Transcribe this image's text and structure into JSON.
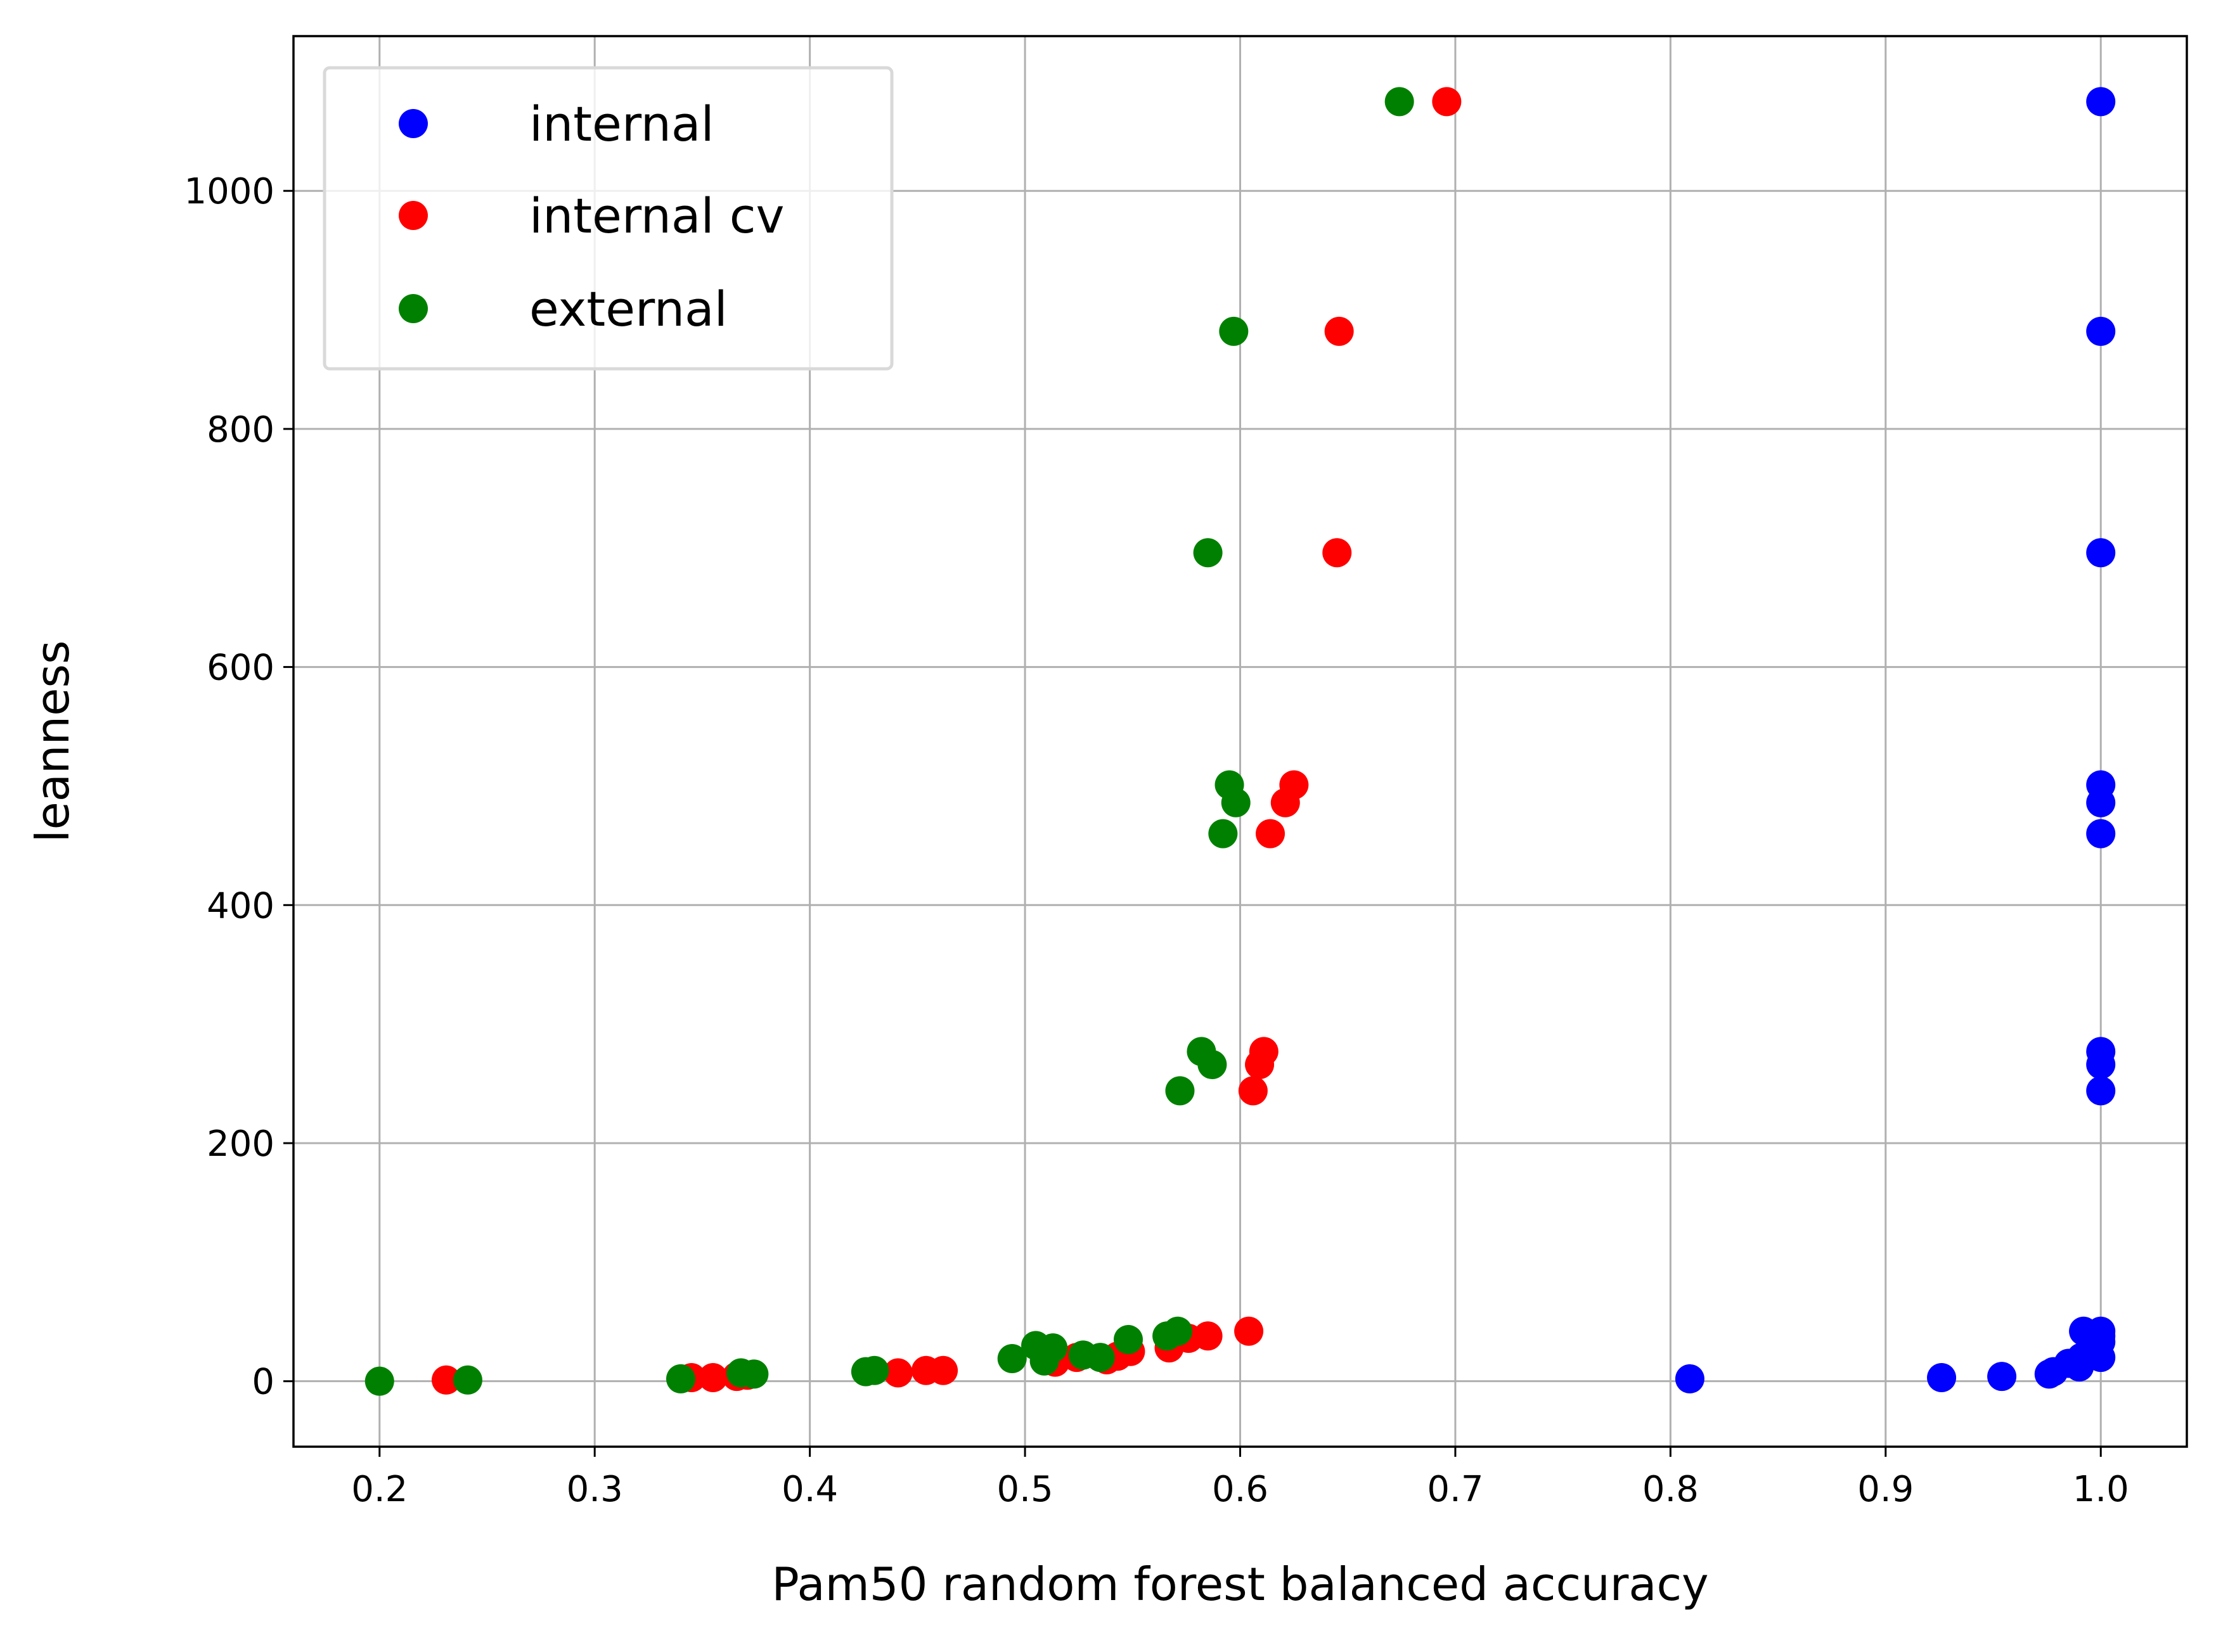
{
  "chart_data": {
    "type": "scatter",
    "xlabel": "Pam50 random forest balanced accuracy",
    "ylabel": "leanness",
    "xlim": [
      0.16,
      1.04
    ],
    "ylim": [
      -55,
      1130
    ],
    "x_ticks": [
      0.2,
      0.3,
      0.4,
      0.5,
      0.6,
      0.7,
      0.8,
      0.9,
      1.0
    ],
    "x_tick_labels": [
      "0.2",
      "0.3",
      "0.4",
      "0.5",
      "0.6",
      "0.7",
      "0.8",
      "0.9",
      "1.0"
    ],
    "y_ticks": [
      0,
      200,
      400,
      600,
      800,
      1000
    ],
    "y_tick_labels": [
      "0",
      "200",
      "400",
      "600",
      "800",
      "1000"
    ],
    "grid": true,
    "legend_position": "top-left",
    "series": [
      {
        "name": "internal",
        "color": "#0000ff",
        "points": [
          [
            1.0,
            1075
          ],
          [
            1.0,
            882
          ],
          [
            1.0,
            696
          ],
          [
            1.0,
            501
          ],
          [
            1.0,
            486
          ],
          [
            1.0,
            460
          ],
          [
            1.0,
            277
          ],
          [
            1.0,
            266
          ],
          [
            1.0,
            244
          ],
          [
            1.0,
            42
          ],
          [
            1.0,
            38
          ],
          [
            1.0,
            33
          ],
          [
            1.0,
            20
          ],
          [
            0.999,
            25
          ],
          [
            0.996,
            30
          ],
          [
            0.992,
            42
          ],
          [
            0.991,
            20
          ],
          [
            0.99,
            12
          ],
          [
            0.985,
            15
          ],
          [
            0.978,
            8
          ],
          [
            0.976,
            6
          ],
          [
            0.954,
            4
          ],
          [
            0.926,
            3
          ],
          [
            0.809,
            2
          ]
        ]
      },
      {
        "name": "internal cv",
        "color": "#ff0000",
        "points": [
          [
            0.696,
            1075
          ],
          [
            0.646,
            882
          ],
          [
            0.645,
            696
          ],
          [
            0.625,
            501
          ],
          [
            0.621,
            486
          ],
          [
            0.614,
            460
          ],
          [
            0.611,
            277
          ],
          [
            0.609,
            266
          ],
          [
            0.606,
            244
          ],
          [
            0.604,
            42
          ],
          [
            0.585,
            38
          ],
          [
            0.576,
            36
          ],
          [
            0.567,
            28
          ],
          [
            0.549,
            25
          ],
          [
            0.543,
            21
          ],
          [
            0.538,
            18
          ],
          [
            0.524,
            20
          ],
          [
            0.514,
            16
          ],
          [
            0.462,
            9
          ],
          [
            0.454,
            9
          ],
          [
            0.441,
            7
          ],
          [
            0.371,
            5
          ],
          [
            0.366,
            4
          ],
          [
            0.355,
            3
          ],
          [
            0.345,
            3
          ],
          [
            0.231,
            1
          ]
        ]
      },
      {
        "name": "external",
        "color": "#008000",
        "points": [
          [
            0.674,
            1075
          ],
          [
            0.597,
            882
          ],
          [
            0.585,
            696
          ],
          [
            0.595,
            501
          ],
          [
            0.598,
            486
          ],
          [
            0.592,
            460
          ],
          [
            0.582,
            277
          ],
          [
            0.587,
            266
          ],
          [
            0.572,
            244
          ],
          [
            0.571,
            42
          ],
          [
            0.566,
            38
          ],
          [
            0.548,
            35
          ],
          [
            0.535,
            20
          ],
          [
            0.527,
            22
          ],
          [
            0.513,
            28
          ],
          [
            0.509,
            17
          ],
          [
            0.505,
            30
          ],
          [
            0.494,
            19
          ],
          [
            0.43,
            9
          ],
          [
            0.426,
            8
          ],
          [
            0.374,
            6
          ],
          [
            0.368,
            7
          ],
          [
            0.34,
            2
          ],
          [
            0.241,
            1
          ],
          [
            0.2,
            0
          ]
        ]
      }
    ]
  }
}
